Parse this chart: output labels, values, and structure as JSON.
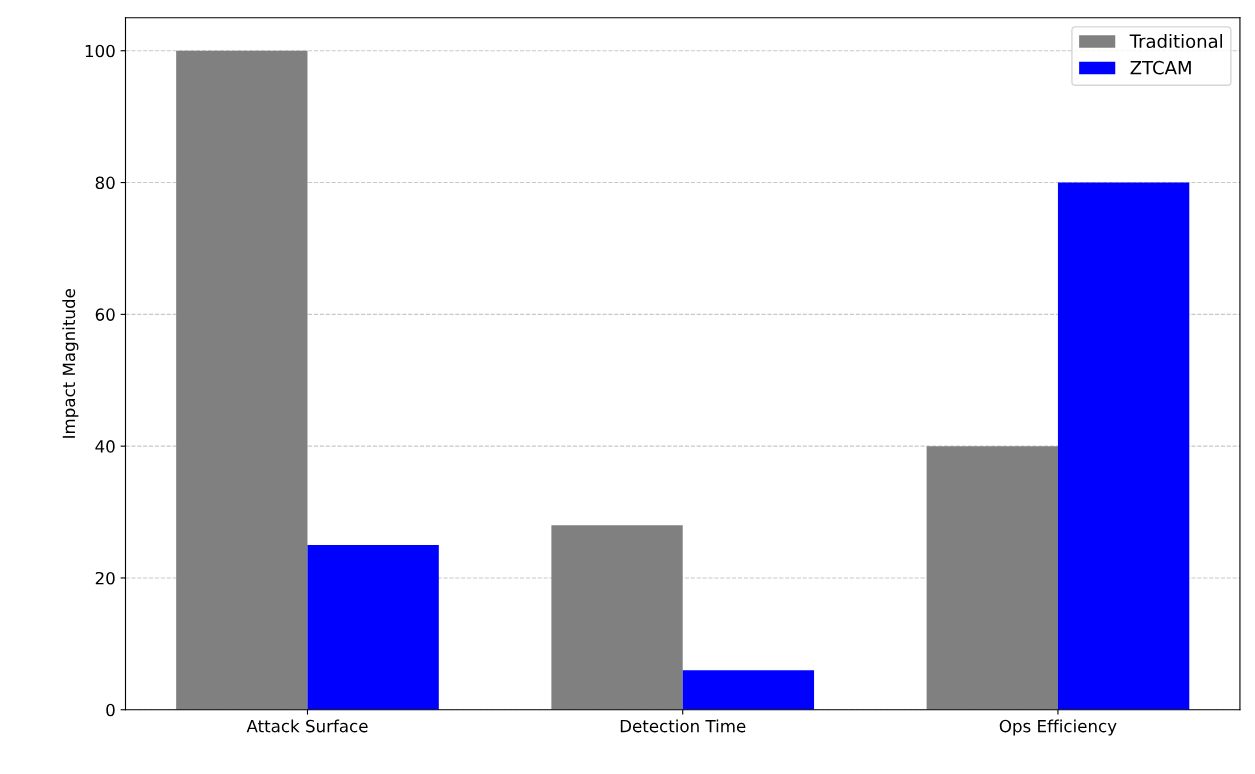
{
  "chart_data": {
    "type": "bar",
    "ylabel": "Impact Magnitude",
    "categories": [
      "Attack Surface",
      "Detection Time",
      "Ops Efficiency"
    ],
    "series": [
      {
        "name": "Traditional",
        "color": "#808080",
        "values": [
          100,
          28,
          40
        ]
      },
      {
        "name": "ZTCAM",
        "color": "#0000ff",
        "values": [
          25,
          6,
          80
        ]
      }
    ],
    "ylim": [
      0,
      105
    ],
    "yticks": [
      0,
      20,
      40,
      60,
      80,
      100
    ],
    "grid": "y",
    "line_style": "dashed",
    "legend": "top right"
  }
}
